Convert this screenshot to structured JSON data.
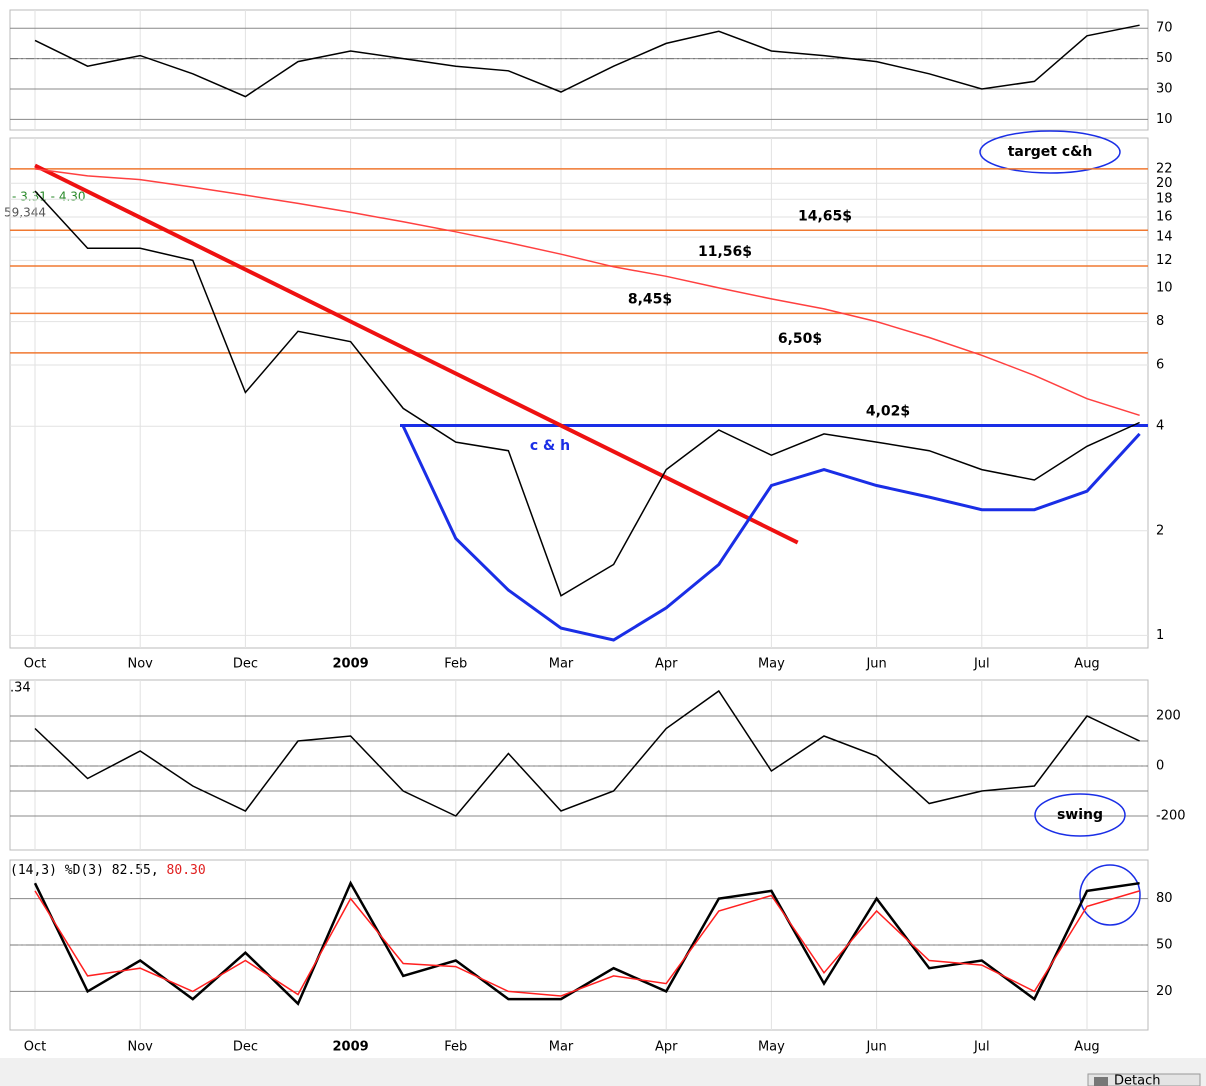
{
  "chart_data": [
    {
      "type": "line",
      "ylim": [
        3,
        82
      ],
      "yticks": [
        10,
        30,
        50,
        70
      ],
      "midline": 50,
      "series": [
        {
          "color": "#000000",
          "values": [
            62,
            45,
            52,
            40,
            25,
            48,
            55,
            50,
            45,
            42,
            28,
            45,
            60,
            68,
            55,
            52,
            48,
            40,
            30,
            35,
            65,
            72
          ]
        }
      ]
    },
    {
      "type": "line",
      "log": true,
      "ylim": [
        0.92,
        27
      ],
      "yticks": [
        1,
        2,
        4,
        6,
        8,
        10,
        12,
        14,
        16,
        18,
        20,
        22
      ],
      "categories": [
        "Oct",
        null,
        "Nov",
        null,
        "Dec",
        null,
        "2009",
        null,
        "Feb",
        null,
        "Mar",
        null,
        "Apr",
        null,
        "May",
        null,
        "Jun",
        null,
        "Jul",
        null,
        "Aug",
        null
      ],
      "header": [
        "- 3.31 - 4.30",
        "59,344"
      ],
      "series": [
        {
          "color": "#000000",
          "values": [
            19,
            13,
            13,
            12,
            5,
            7.5,
            7,
            4.5,
            3.6,
            3.4,
            1.3,
            1.6,
            3.0,
            3.9,
            3.3,
            3.8,
            3.6,
            3.4,
            3.0,
            2.8,
            3.5,
            4.1
          ]
        },
        {
          "color": "#ff4040",
          "values": [
            22,
            21,
            20.5,
            19.5,
            18.5,
            17.5,
            16.5,
            15.5,
            14.5,
            13.5,
            12.5,
            11.5,
            10.8,
            10,
            9.3,
            8.7,
            8,
            7.2,
            6.4,
            5.6,
            4.8,
            4.3
          ]
        },
        {
          "color": "#1a2ee6",
          "values": [
            null,
            null,
            null,
            null,
            null,
            null,
            null,
            4,
            1.9,
            1.35,
            1.05,
            0.97,
            1.2,
            1.6,
            2.7,
            3.0,
            2.7,
            2.5,
            2.3,
            2.3,
            2.6,
            3.8
          ]
        }
      ],
      "trendline": {
        "color": "#ee1111",
        "from": [
          0,
          22.5
        ],
        "to": [
          14.5,
          1.85
        ]
      },
      "levels": [
        {
          "value": 22,
          "color": "#f07830"
        },
        {
          "value": 14.65,
          "color": "#f07830",
          "label": "14,65$"
        },
        {
          "value": 11.56,
          "color": "#f07830",
          "label": "11,56$"
        },
        {
          "value": 8.45,
          "color": "#f07830",
          "label": "8,45$"
        },
        {
          "value": 6.5,
          "color": "#f07830",
          "label": "6,50$"
        },
        {
          "value": 4.02,
          "color": "#1a2ee6",
          "label": "4,02$"
        }
      ],
      "annotations": [
        "c & h",
        "target c&h"
      ]
    },
    {
      "type": "line",
      "ylim": [
        -336,
        344
      ],
      "yticks": [
        -200,
        0,
        200
      ],
      "midline": 0,
      "bands": [
        -100,
        100
      ],
      "header": ".34",
      "annotation": "swing",
      "series": [
        {
          "color": "#000000",
          "values": [
            150,
            -50,
            60,
            -80,
            -180,
            100,
            120,
            -100,
            -200,
            50,
            -180,
            -100,
            150,
            300,
            -20,
            120,
            40,
            -150,
            -100,
            -80,
            200,
            100
          ]
        }
      ]
    },
    {
      "type": "line",
      "ylim": [
        -5,
        105
      ],
      "yticks": [
        20,
        50,
        80
      ],
      "midline": 50,
      "header": [
        "(14,3) %D(3) 82.55,",
        "80.30"
      ],
      "series": [
        {
          "color": "#000000",
          "values": [
            90,
            20,
            40,
            15,
            45,
            12,
            90,
            30,
            40,
            15,
            15,
            35,
            20,
            80,
            85,
            25,
            80,
            35,
            40,
            15,
            85,
            90
          ]
        },
        {
          "color": "#ff2020",
          "values": [
            85,
            30,
            35,
            20,
            40,
            18,
            80,
            38,
            36,
            20,
            17,
            30,
            25,
            72,
            82,
            32,
            72,
            40,
            37,
            20,
            75,
            85
          ]
        }
      ]
    }
  ],
  "button": "Detach"
}
